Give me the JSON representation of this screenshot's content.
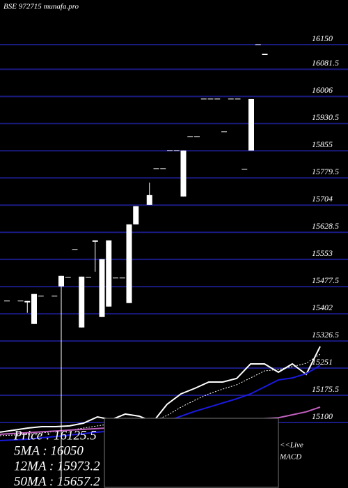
{
  "chart_data": [
    {
      "type": "candlestick",
      "title": "BSE 972715 munafa.pro",
      "categories": [
        null,
        null,
        null,
        null,
        null,
        null,
        null,
        null,
        null,
        null,
        null,
        null,
        null,
        null,
        null,
        null,
        null,
        null,
        null,
        null,
        null,
        null,
        null,
        null,
        null,
        null,
        null,
        null,
        null,
        null,
        null,
        null,
        null,
        null,
        null,
        null,
        null,
        null,
        null
      ],
      "open": [
        15437.6,
        null,
        15437.6,
        15433.7,
        15373.7,
        15451.1,
        null,
        15451.1,
        15478.2,
        15503.4,
        15580.8,
        15364,
        15503.4,
        15606,
        15393.1,
        15422.1,
        15501.5,
        15501.5,
        15431.8,
        15650.5,
        null,
        15704.7,
        15805.4,
        15805.4,
        15855.7,
        15855.7,
        15728,
        15894.5,
        15894.5,
        15999,
        15999,
        15999,
        15908,
        15999,
        15999,
        15803.5,
        15855.7,
        16150,
        16121
      ],
      "high": [
        15437.6,
        null,
        15437.6,
        15437.6,
        15457,
        15451.1,
        null,
        15451.1,
        15507.3,
        15503.4,
        15580.8,
        15505.3,
        15503.4,
        15606,
        15553.7,
        15606,
        15501.5,
        15501.5,
        15650.5,
        15700.9,
        null,
        15766.7,
        15805.4,
        15805.4,
        15855.7,
        15855.7,
        15855.7,
        15894.5,
        15894.5,
        15999,
        15999,
        15999,
        15908,
        15999,
        15999,
        15803.5,
        15999,
        16150,
        16124.8
      ],
      "low": [
        15437.6,
        null,
        15437.6,
        15404.7,
        15373.7,
        15451.1,
        null,
        15451.1,
        14938,
        15503.4,
        15580.8,
        15364,
        15503.4,
        15518.9,
        15393.1,
        15422.1,
        15501.5,
        15501.5,
        15431.8,
        15650.5,
        null,
        15704.7,
        15805.4,
        15805.4,
        15855.7,
        15855.7,
        15728,
        15894.5,
        15894.5,
        15999,
        15999,
        15999,
        15908,
        15999,
        15999,
        15803.5,
        15855.7,
        16150,
        16121
      ],
      "close": [
        15437.6,
        null,
        15437.6,
        15437.6,
        15457,
        15451.1,
        null,
        15451.1,
        15507.3,
        15503.4,
        15580.8,
        15505.3,
        15503.4,
        15603,
        15553.7,
        15606,
        15501.5,
        15501.5,
        15650.5,
        15700.9,
        null,
        15731.8,
        15805.4,
        15805.4,
        15855.7,
        15855.7,
        15855.7,
        15894.5,
        15894.5,
        15999,
        15999,
        15999,
        15908,
        15999,
        15999,
        15803.5,
        15999,
        16150,
        16124.8
      ],
      "color": "#ffffff",
      "ylim": [
        15100,
        16150
      ],
      "yticks": [
        15100,
        15175.5,
        15251,
        15326.5,
        15402,
        15477.5,
        15553,
        15628.5,
        15704,
        15779.5,
        15855,
        15930.5,
        16006,
        16081.5,
        16150
      ],
      "grid": true,
      "grid_color": "#1a1a80"
    },
    {
      "type": "line",
      "categories": [
        null,
        null,
        null,
        null,
        null,
        null,
        null,
        null,
        null,
        null,
        null,
        null,
        null,
        null,
        null,
        null,
        null,
        null,
        null,
        null,
        null,
        null,
        null,
        null
      ],
      "ylim": [
        0,
        100
      ],
      "series": [
        {
          "color": "#ffffff",
          "style": "solid",
          "values": [
            11.8,
            13.5,
            15.3,
            16.5,
            16.5,
            17.1,
            19.4,
            24.7,
            22.4,
            27.1,
            25.3,
            20.6,
            35.3,
            44.1,
            48.8,
            54.1,
            54.1,
            57.1,
            69.4,
            69.4,
            62.4,
            69.4,
            60.6,
            84.1
          ]
        },
        {
          "color": "#ffffff",
          "style": "dotted",
          "values": [
            8.8,
            9.4,
            10,
            11.2,
            12.4,
            13.5,
            15.3,
            17.1,
            18.8,
            20.6,
            21.8,
            21.2,
            25.9,
            32.9,
            38.8,
            44.1,
            48.2,
            51.8,
            57.6,
            63.5,
            64.7,
            67.1,
            70,
            77.6
          ]
        },
        {
          "color": "#1a1adb",
          "style": "solid",
          "values": [
            4.7,
            5.3,
            5.9,
            7.1,
            8.2,
            9.4,
            10.6,
            11.8,
            12.9,
            14.1,
            15.3,
            17.1,
            21.2,
            25.3,
            29.4,
            32.9,
            36.5,
            40,
            44.1,
            50,
            55.9,
            57.6,
            61.2,
            68.2
          ]
        },
        {
          "color": "#c060c0",
          "style": "solid",
          "values": [
            10,
            10.7,
            11.4,
            12.1,
            12.8,
            13.5,
            14.2,
            14.9,
            15.6,
            16.3,
            17,
            17.7,
            18.4,
            19.1,
            19.8,
            20.5,
            21.2,
            21.9,
            22.6,
            23.3,
            24,
            26.5,
            29,
            33
          ]
        }
      ]
    }
  ],
  "indicators": [
    "Price : 16125.5",
    "5MA : 16050",
    "12MA : 15973.2",
    "50MA : 15657.2"
  ],
  "macd_panel": {
    "live": "<<Live",
    "label": "MACD"
  }
}
